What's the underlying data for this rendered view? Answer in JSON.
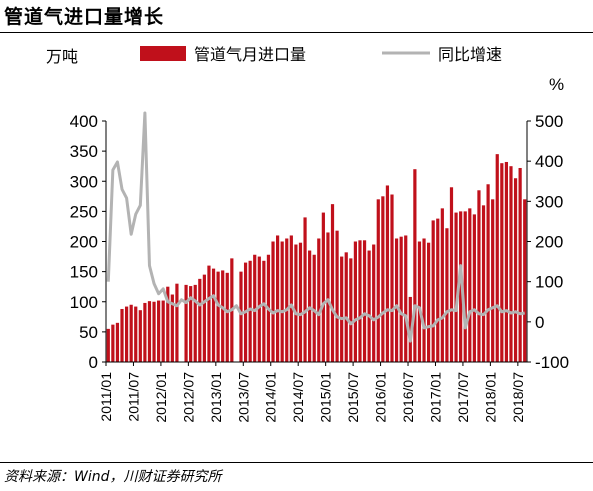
{
  "header": {
    "title": "管道气进口量增长"
  },
  "footer": {
    "source": "资料来源：Wind，川财证券研究所"
  },
  "colors": {
    "bar": "#c0101b",
    "line": "#b3b3b3",
    "axis": "#000000"
  },
  "chart_data": {
    "type": "bar+line",
    "title": "管道气进口量增长",
    "y_left_label": "万吨",
    "y_right_label": "%",
    "y_left_lim": [
      0,
      400
    ],
    "y_left_ticks": [
      "0",
      "50",
      "100",
      "150",
      "200",
      "250",
      "300",
      "350",
      "400"
    ],
    "y_right_lim": [
      -100,
      500
    ],
    "y_right_ticks": [
      "-100",
      "0",
      "100",
      "200",
      "300",
      "400",
      "500"
    ],
    "x_tick_labels": [
      "2011/01",
      "2011/07",
      "2012/01",
      "2012/07",
      "2013/01",
      "2013/07",
      "2014/01",
      "2014/07",
      "2015/01",
      "2015/07",
      "2016/01",
      "2016/07",
      "2017/01",
      "2017/07",
      "2018/01",
      "2018/07"
    ],
    "x_tick_index": [
      0,
      6,
      12,
      18,
      24,
      30,
      36,
      42,
      48,
      54,
      60,
      66,
      72,
      78,
      84,
      90
    ],
    "legend": [
      "管道气月进口量",
      "同比增速"
    ],
    "series": [
      {
        "name": "管道气月进口量",
        "type": "bar",
        "axis": "left",
        "values": [
          55,
          62,
          65,
          88,
          92,
          95,
          92,
          86,
          98,
          101,
          100,
          102,
          102,
          125,
          112,
          130,
          0,
          128,
          126,
          128,
          138,
          145,
          160,
          155,
          150,
          152,
          148,
          172,
          0,
          150,
          165,
          168,
          178,
          175,
          168,
          178,
          200,
          210,
          200,
          205,
          210,
          195,
          198,
          240,
          185,
          178,
          205,
          248,
          215,
          262,
          218,
          175,
          182,
          172,
          200,
          202,
          202,
          185,
          195,
          270,
          275,
          293,
          278,
          205,
          208,
          210,
          108,
          320,
          200,
          205,
          198,
          235,
          238,
          255,
          222,
          290,
          248,
          250,
          250,
          255,
          245,
          285,
          260,
          295,
          270,
          345,
          330,
          332,
          325,
          305,
          322,
          270
        ]
      },
      {
        "name": "同比增速",
        "type": "line",
        "axis": "right",
        "values": [
          100,
          378,
          398,
          330,
          308,
          218,
          268,
          290,
          520,
          140,
          95,
          70,
          82,
          50,
          45,
          40,
          55,
          48,
          60,
          52,
          42,
          50,
          58,
          65,
          42,
          35,
          25,
          30,
          40,
          20,
          25,
          32,
          28,
          38,
          45,
          32,
          22,
          28,
          25,
          30,
          42,
          20,
          18,
          25,
          35,
          28,
          18,
          45,
          55,
          30,
          12,
          8,
          10,
          -5,
          5,
          10,
          20,
          15,
          5,
          12,
          22,
          30,
          28,
          40,
          20,
          15,
          -48,
          40,
          35,
          -15,
          -12,
          -10,
          5,
          10,
          25,
          30,
          28,
          140,
          -15,
          25,
          30,
          20,
          18,
          30,
          35,
          40,
          25,
          28,
          22,
          25,
          20,
          22
        ]
      }
    ]
  }
}
